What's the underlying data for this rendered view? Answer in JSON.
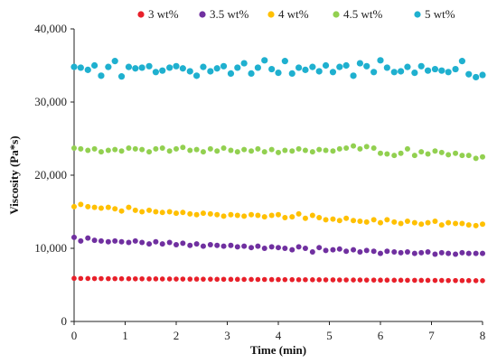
{
  "chart_data": {
    "type": "scatter",
    "title": "",
    "xlabel": "Time (min)",
    "ylabel": "Viscosity (Pa*s)",
    "xlim": [
      0,
      8
    ],
    "ylim": [
      0,
      40000
    ],
    "xticks": [
      0,
      1,
      2,
      3,
      4,
      5,
      6,
      7,
      8
    ],
    "xtick_labels": [
      "0",
      "1",
      "2",
      "3",
      "4",
      "5",
      "6",
      "7",
      "8"
    ],
    "yticks": [
      0,
      10000,
      20000,
      30000,
      40000
    ],
    "ytick_labels": [
      "0",
      "10,000",
      "20,000",
      "30,000",
      "40,000"
    ],
    "grid": false,
    "legend_position": "top",
    "series": [
      {
        "name": "3 wt%",
        "color": "#e8202a",
        "x": [
          0.0,
          0.13,
          0.27,
          0.4,
          0.53,
          0.67,
          0.8,
          0.93,
          1.07,
          1.2,
          1.33,
          1.47,
          1.6,
          1.73,
          1.87,
          2.0,
          2.13,
          2.27,
          2.4,
          2.53,
          2.67,
          2.8,
          2.93,
          3.07,
          3.2,
          3.33,
          3.47,
          3.6,
          3.73,
          3.87,
          4.0,
          4.13,
          4.27,
          4.4,
          4.53,
          4.67,
          4.8,
          4.93,
          5.07,
          5.2,
          5.33,
          5.47,
          5.6,
          5.73,
          5.87,
          6.0,
          6.13,
          6.27,
          6.4,
          6.53,
          6.67,
          6.8,
          6.93,
          7.07,
          7.2,
          7.33,
          7.47,
          7.6,
          7.73,
          7.87,
          8.0
        ],
        "y": [
          5900,
          5880,
          5870,
          5860,
          5860,
          5850,
          5850,
          5840,
          5840,
          5830,
          5830,
          5820,
          5820,
          5810,
          5810,
          5800,
          5800,
          5790,
          5790,
          5780,
          5780,
          5770,
          5770,
          5760,
          5760,
          5750,
          5750,
          5740,
          5740,
          5730,
          5730,
          5720,
          5720,
          5710,
          5710,
          5700,
          5700,
          5690,
          5690,
          5680,
          5680,
          5670,
          5670,
          5660,
          5660,
          5650,
          5650,
          5640,
          5640,
          5630,
          5630,
          5620,
          5620,
          5610,
          5610,
          5600,
          5600,
          5590,
          5590,
          5580,
          5580
        ]
      },
      {
        "name": "3.5 wt%",
        "color": "#7030a0",
        "x": [
          0.0,
          0.13,
          0.27,
          0.4,
          0.53,
          0.67,
          0.8,
          0.93,
          1.07,
          1.2,
          1.33,
          1.47,
          1.6,
          1.73,
          1.87,
          2.0,
          2.13,
          2.27,
          2.4,
          2.53,
          2.67,
          2.8,
          2.93,
          3.07,
          3.2,
          3.33,
          3.47,
          3.6,
          3.73,
          3.87,
          4.0,
          4.13,
          4.27,
          4.4,
          4.53,
          4.67,
          4.8,
          4.93,
          5.07,
          5.2,
          5.33,
          5.47,
          5.6,
          5.73,
          5.87,
          6.0,
          6.13,
          6.27,
          6.4,
          6.53,
          6.67,
          6.8,
          6.93,
          7.07,
          7.2,
          7.33,
          7.47,
          7.6,
          7.73,
          7.87,
          8.0
        ],
        "y": [
          11500,
          11000,
          11400,
          11100,
          11000,
          10900,
          11000,
          10900,
          10800,
          11000,
          10800,
          10600,
          10900,
          10600,
          10800,
          10500,
          10700,
          10400,
          10600,
          10300,
          10500,
          10400,
          10300,
          10400,
          10200,
          10300,
          10100,
          10300,
          10000,
          10200,
          10100,
          10000,
          9800,
          10200,
          10000,
          9500,
          10100,
          9700,
          9800,
          9900,
          9600,
          9800,
          9500,
          9700,
          9600,
          9300,
          9600,
          9500,
          9400,
          9500,
          9300,
          9400,
          9500,
          9200,
          9400,
          9300,
          9200,
          9400,
          9300,
          9300,
          9300
        ]
      },
      {
        "name": "4 wt%",
        "color": "#ffc000",
        "x": [
          0.0,
          0.13,
          0.27,
          0.4,
          0.53,
          0.67,
          0.8,
          0.93,
          1.07,
          1.2,
          1.33,
          1.47,
          1.6,
          1.73,
          1.87,
          2.0,
          2.13,
          2.27,
          2.4,
          2.53,
          2.67,
          2.8,
          2.93,
          3.07,
          3.2,
          3.33,
          3.47,
          3.6,
          3.73,
          3.87,
          4.0,
          4.13,
          4.27,
          4.4,
          4.53,
          4.67,
          4.8,
          4.93,
          5.07,
          5.2,
          5.33,
          5.47,
          5.6,
          5.73,
          5.87,
          6.0,
          6.13,
          6.27,
          6.4,
          6.53,
          6.67,
          6.8,
          6.93,
          7.07,
          7.2,
          7.33,
          7.47,
          7.6,
          7.73,
          7.87,
          8.0
        ],
        "y": [
          15700,
          16000,
          15700,
          15600,
          15500,
          15600,
          15400,
          15100,
          15600,
          15200,
          15000,
          15200,
          15000,
          14900,
          15000,
          14800,
          14900,
          14700,
          14600,
          14800,
          14700,
          14600,
          14400,
          14600,
          14500,
          14400,
          14600,
          14500,
          14300,
          14500,
          14600,
          14200,
          14300,
          14700,
          14100,
          14500,
          14200,
          13900,
          14000,
          13800,
          14100,
          13800,
          13700,
          13600,
          13900,
          13500,
          13900,
          13600,
          13400,
          13700,
          13500,
          13300,
          13500,
          13700,
          13200,
          13500,
          13400,
          13400,
          13200,
          13100,
          13300
        ]
      },
      {
        "name": "4.5 wt%",
        "color": "#92d050",
        "x": [
          0.0,
          0.13,
          0.27,
          0.4,
          0.53,
          0.67,
          0.8,
          0.93,
          1.07,
          1.2,
          1.33,
          1.47,
          1.6,
          1.73,
          1.87,
          2.0,
          2.13,
          2.27,
          2.4,
          2.53,
          2.67,
          2.8,
          2.93,
          3.07,
          3.2,
          3.33,
          3.47,
          3.6,
          3.73,
          3.87,
          4.0,
          4.13,
          4.27,
          4.4,
          4.53,
          4.67,
          4.8,
          4.93,
          5.07,
          5.2,
          5.33,
          5.47,
          5.6,
          5.73,
          5.87,
          6.0,
          6.13,
          6.27,
          6.4,
          6.53,
          6.67,
          6.8,
          6.93,
          7.07,
          7.2,
          7.33,
          7.47,
          7.6,
          7.73,
          7.87,
          8.0
        ],
        "y": [
          23700,
          23600,
          23400,
          23600,
          23200,
          23400,
          23500,
          23300,
          23700,
          23600,
          23500,
          23200,
          23600,
          23700,
          23300,
          23600,
          23800,
          23400,
          23500,
          23200,
          23600,
          23300,
          23700,
          23400,
          23200,
          23500,
          23300,
          23600,
          23200,
          23500,
          23100,
          23400,
          23300,
          23600,
          23400,
          23200,
          23500,
          23400,
          23300,
          23600,
          23700,
          24000,
          23600,
          23900,
          23700,
          23000,
          22900,
          22700,
          23000,
          23600,
          22700,
          23200,
          22900,
          23300,
          23100,
          22800,
          23000,
          22700,
          22700,
          22300,
          22500
        ]
      },
      {
        "name": "5 wt%",
        "color": "#1fb0cf",
        "x": [
          0.0,
          0.13,
          0.27,
          0.4,
          0.53,
          0.67,
          0.8,
          0.93,
          1.07,
          1.2,
          1.33,
          1.47,
          1.6,
          1.73,
          1.87,
          2.0,
          2.13,
          2.27,
          2.4,
          2.53,
          2.67,
          2.8,
          2.93,
          3.07,
          3.2,
          3.33,
          3.47,
          3.6,
          3.73,
          3.87,
          4.0,
          4.13,
          4.27,
          4.4,
          4.53,
          4.67,
          4.8,
          4.93,
          5.07,
          5.2,
          5.33,
          5.47,
          5.6,
          5.73,
          5.87,
          6.0,
          6.13,
          6.27,
          6.4,
          6.53,
          6.67,
          6.8,
          6.93,
          7.07,
          7.2,
          7.33,
          7.47,
          7.6,
          7.73,
          7.87,
          8.0
        ],
        "y": [
          34800,
          34700,
          34400,
          35000,
          33600,
          34800,
          35600,
          33500,
          34800,
          34600,
          34700,
          34900,
          34100,
          34300,
          34700,
          34900,
          34600,
          34200,
          33600,
          34800,
          34200,
          34600,
          34900,
          33900,
          34700,
          35300,
          33900,
          34700,
          35700,
          34500,
          34000,
          35600,
          33900,
          34700,
          34400,
          34800,
          34200,
          35000,
          34100,
          34800,
          35000,
          33600,
          35300,
          34900,
          34100,
          35700,
          34700,
          34100,
          34200,
          34800,
          34000,
          34900,
          34300,
          34500,
          34300,
          34100,
          34500,
          35600,
          33800,
          33400,
          33700
        ]
      }
    ]
  }
}
